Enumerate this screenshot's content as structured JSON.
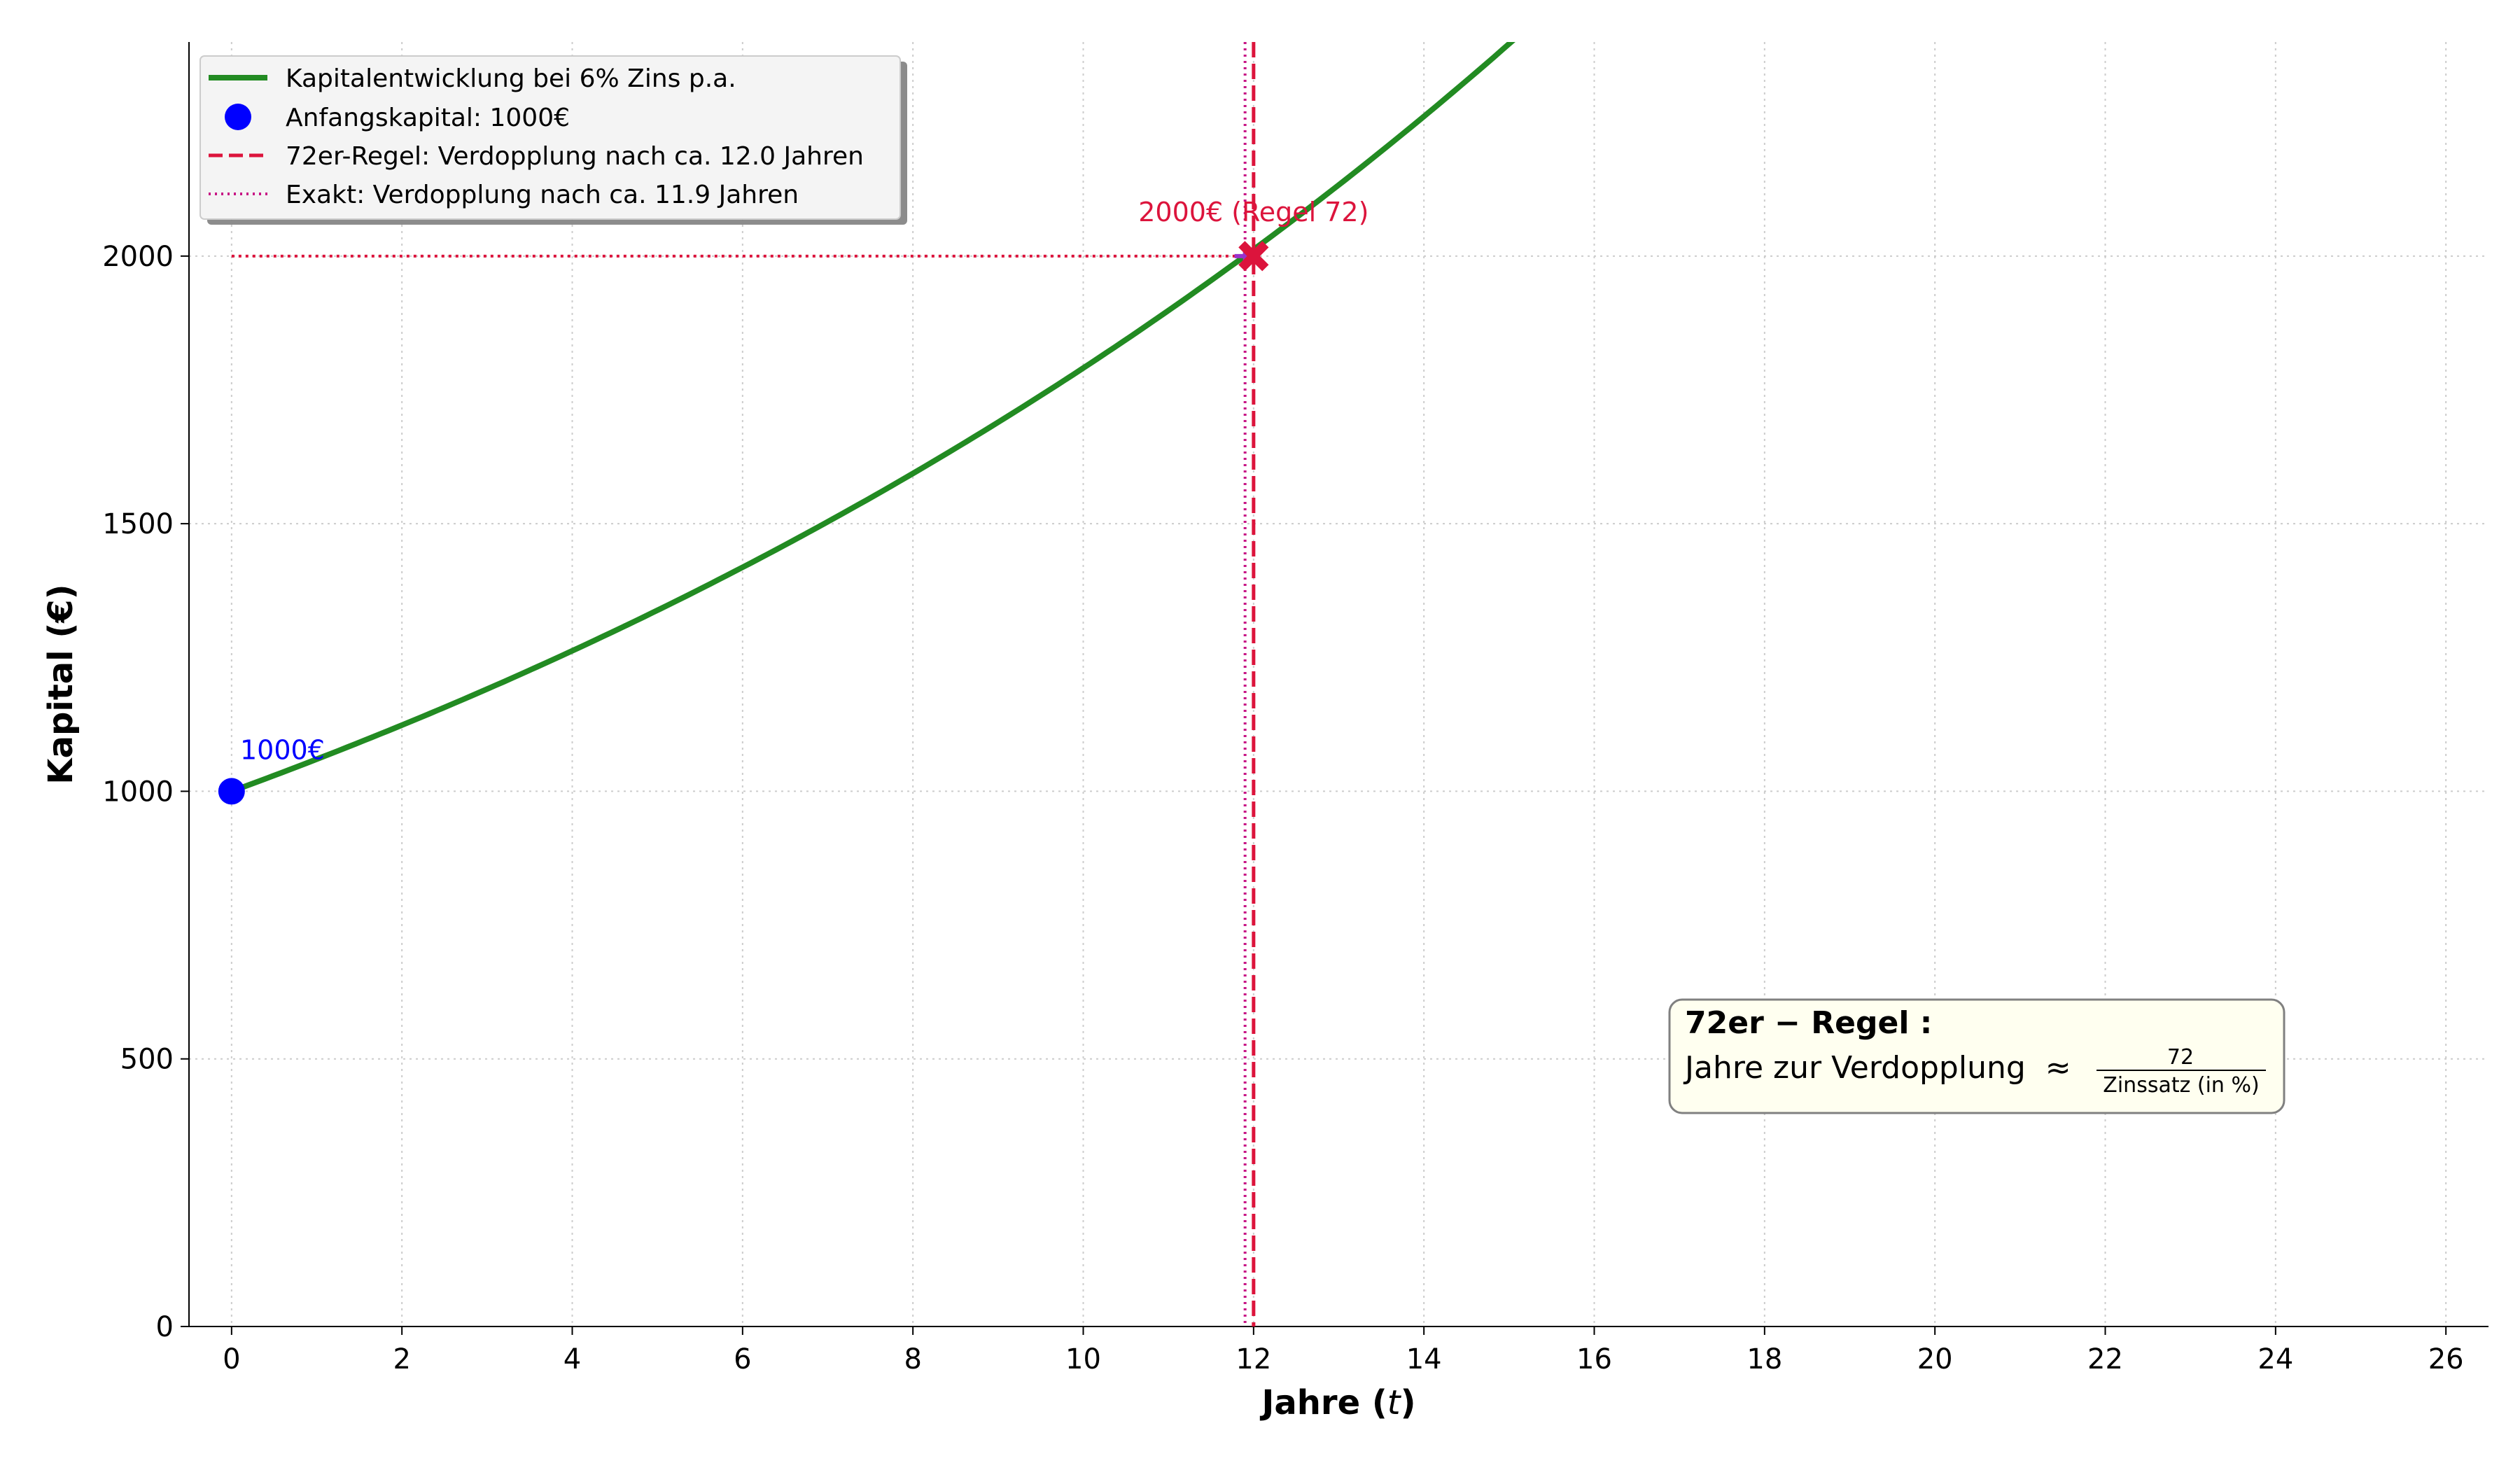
{
  "chart_data": {
    "type": "line",
    "title": "",
    "xlabel": "Jahre (",
    "xlabel_var": "t",
    "xlabel_close": ")",
    "ylabel": "Kapital (€)",
    "xlim": [
      -0.5,
      26.5
    ],
    "ylim": [
      0,
      2400
    ],
    "xticks": [
      0,
      2,
      4,
      6,
      8,
      10,
      12,
      14,
      16,
      18,
      20,
      22,
      24,
      26
    ],
    "yticks": [
      0,
      500,
      1000,
      1500,
      2000
    ],
    "grid": true,
    "legend_position": "top-left",
    "series": [
      {
        "name": "Kapitalentwicklung bei 6% Zins p.a.",
        "kind": "line",
        "color": "#228b22",
        "principal": 1000,
        "rate": 0.06,
        "x": [
          0,
          1,
          2,
          3,
          4,
          5,
          6,
          7,
          8,
          9,
          10,
          11,
          12,
          13,
          14,
          15
        ],
        "y": [
          1000,
          1060,
          1124,
          1191,
          1262,
          1338,
          1419,
          1504,
          1594,
          1689,
          1791,
          1898,
          2012,
          2133,
          2261,
          2397
        ]
      },
      {
        "name": "Anfangskapital: 1000€",
        "kind": "point",
        "color": "#0000ff",
        "x": 0,
        "y": 1000
      },
      {
        "name": "72er-Regel: Verdopplung nach ca. 12.0 Jahren",
        "kind": "vline",
        "color": "#dc143c",
        "x": 12.0
      },
      {
        "name": "Exakt: Verdopplung nach ca. 11.9 Jahren",
        "kind": "vline-dotted",
        "color": "#c71585",
        "x": 11.9
      }
    ],
    "reference_line": {
      "y": 2000,
      "color": "#dc143c"
    },
    "markers": [
      {
        "x": 12.0,
        "y": 2000,
        "color": "#dc143c",
        "shape": "x"
      },
      {
        "x": 11.9,
        "y": 2000,
        "color": "#9932cc",
        "shape": "plus"
      }
    ],
    "annotations": [
      {
        "text": "1000€",
        "x": 0.1,
        "y": 1060,
        "color": "#0000ff"
      },
      {
        "text": "2000€ (Regel 72)",
        "x": 12.0,
        "y": 2065,
        "color": "#dc143c"
      }
    ],
    "info_box": {
      "title": "72er − Regel :",
      "line": "Jahre zur Verdopplung  ≈",
      "numerator": "72",
      "denominator": "Zinssatz (in %)"
    }
  }
}
